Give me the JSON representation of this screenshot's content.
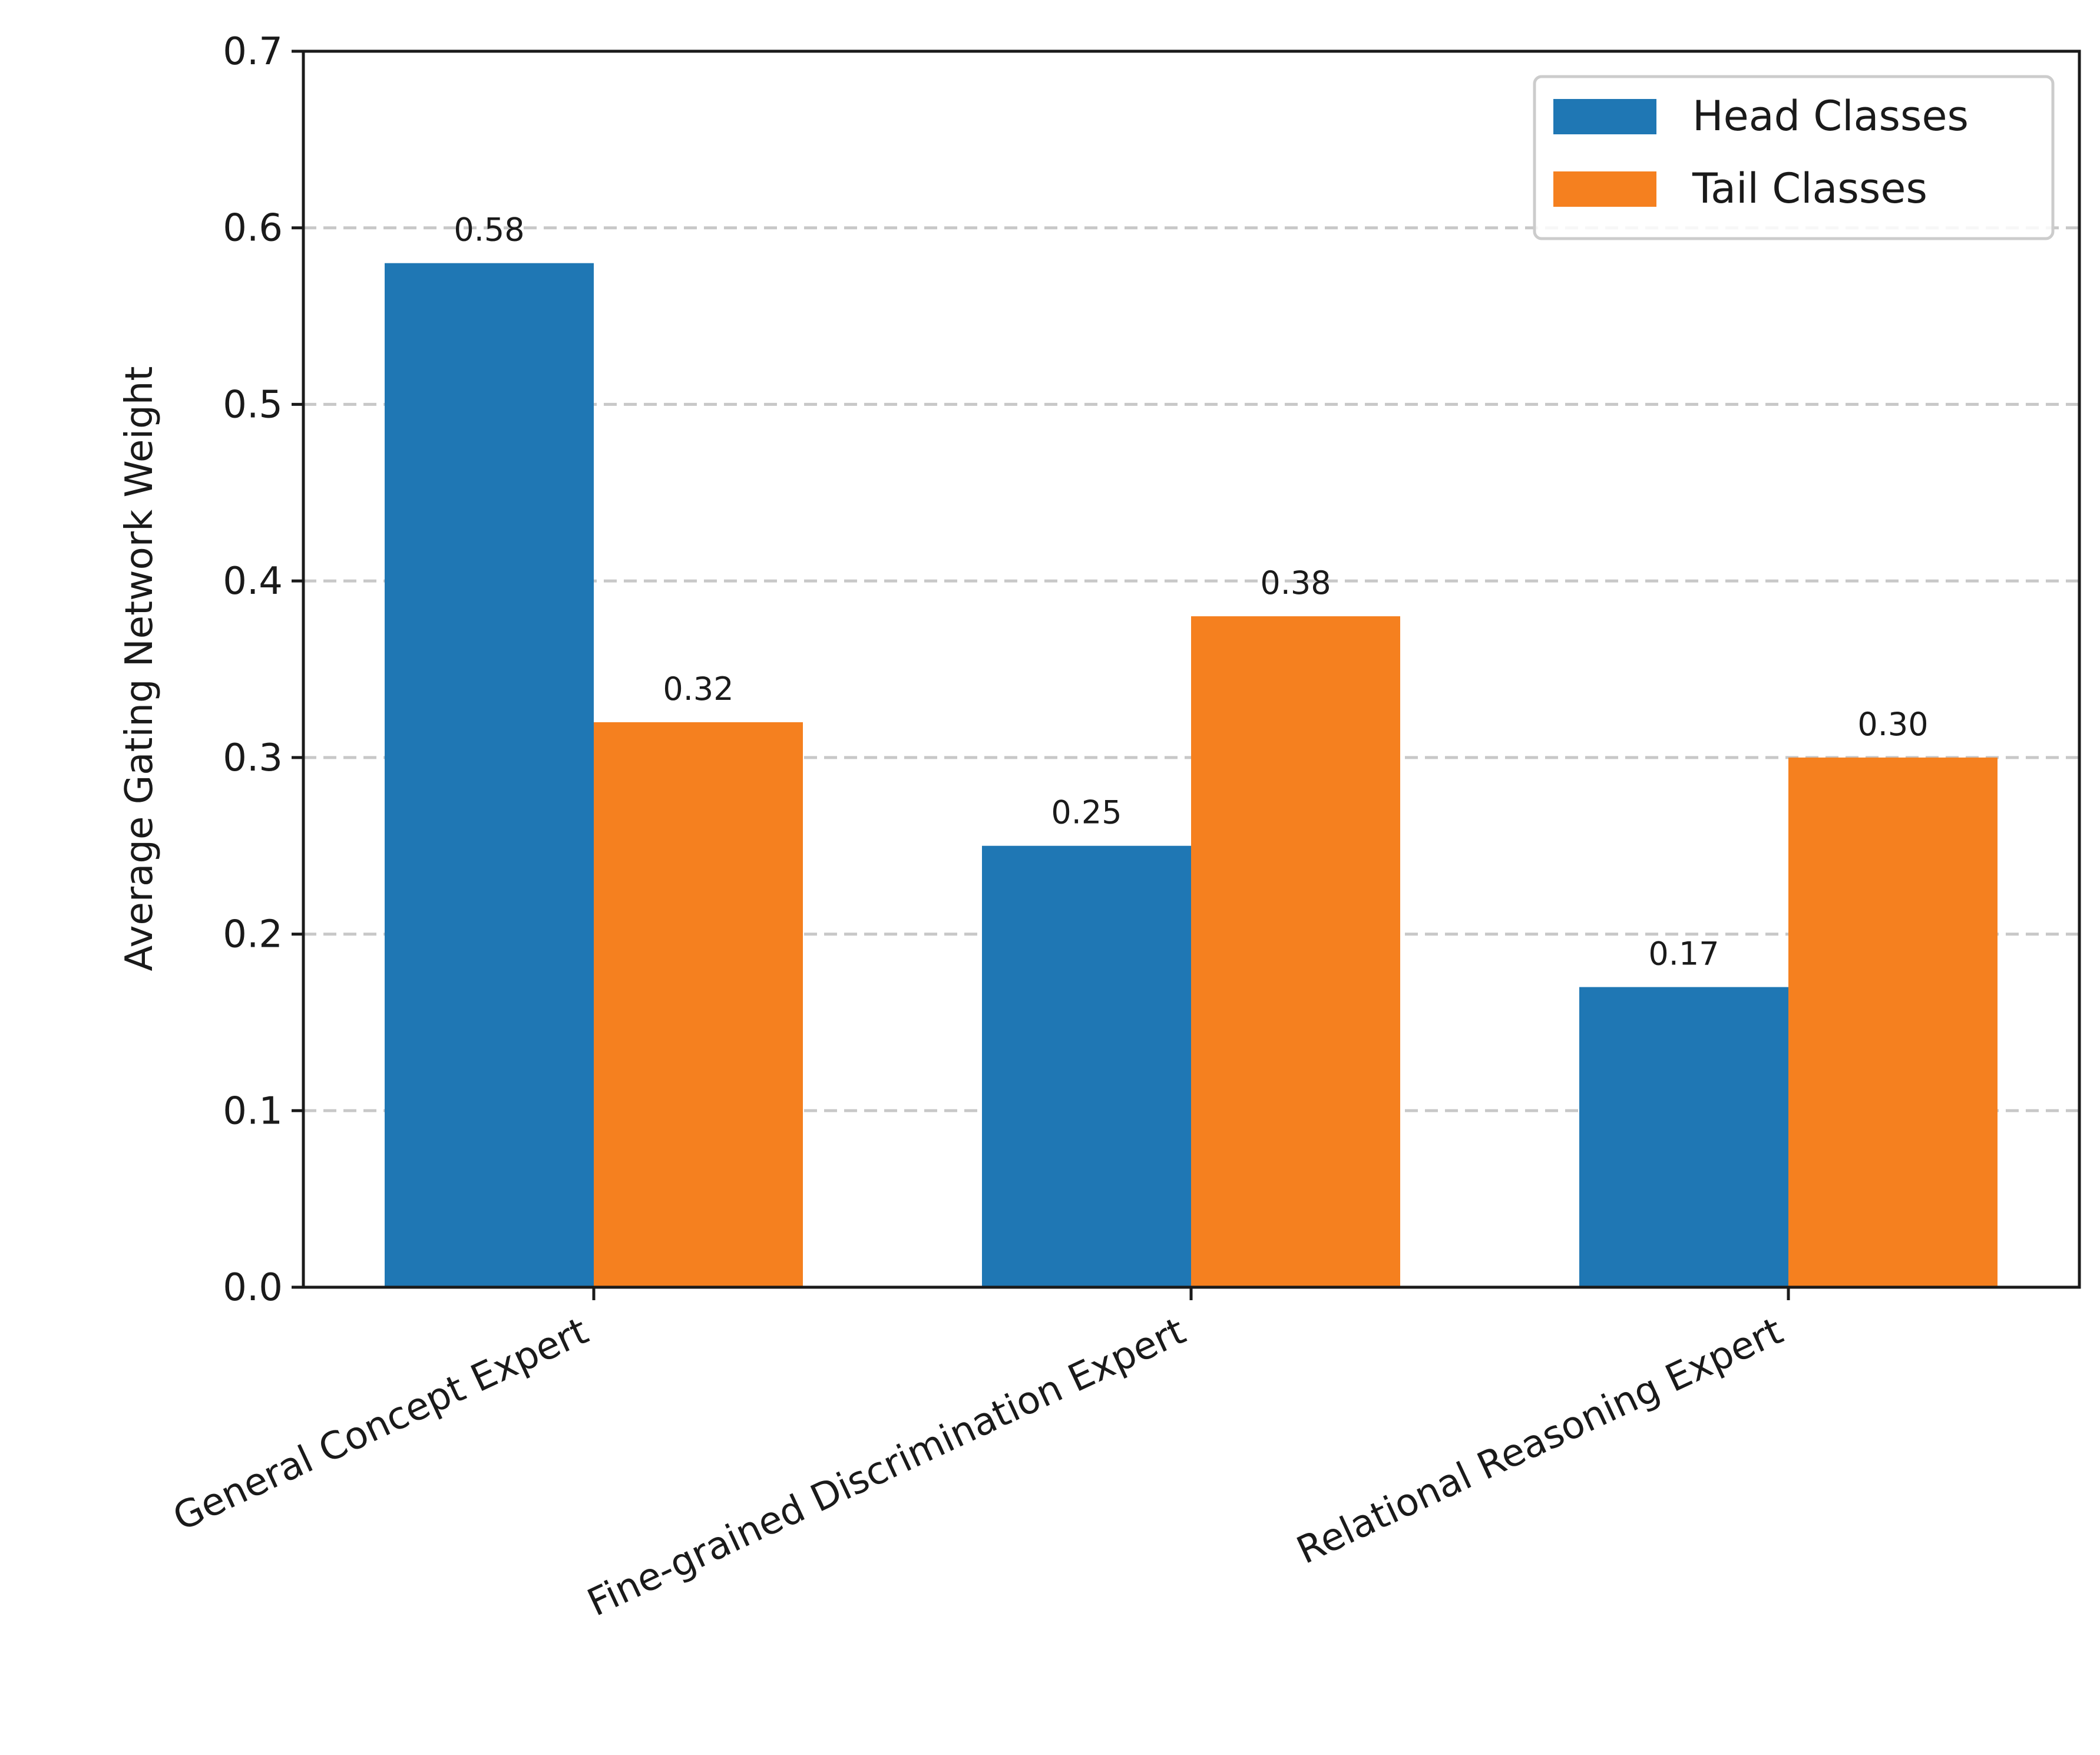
{
  "chart_data": {
    "type": "bar",
    "title": "",
    "xlabel": "",
    "ylabel": "Average Gating Network Weight",
    "ylim": [
      0,
      0.7
    ],
    "yticks": [
      "0.0",
      "0.1",
      "0.2",
      "0.3",
      "0.4",
      "0.5",
      "0.6",
      "0.7"
    ],
    "categories": [
      "General Concept Expert",
      "Fine-grained Discrimination Expert",
      "Relational Reasoning Expert"
    ],
    "series": [
      {
        "name": "Head Classes",
        "color": "#1f77b4",
        "values": [
          0.58,
          0.25,
          0.17
        ],
        "labels": [
          "0.58",
          "0.25",
          "0.17"
        ]
      },
      {
        "name": "Tail Classes",
        "color": "#f5801f",
        "values": [
          0.32,
          0.38,
          0.3
        ],
        "labels": [
          "0.32",
          "0.38",
          "0.30"
        ]
      }
    ],
    "grid": "horizontal dashed",
    "legend_position": "top-right"
  }
}
